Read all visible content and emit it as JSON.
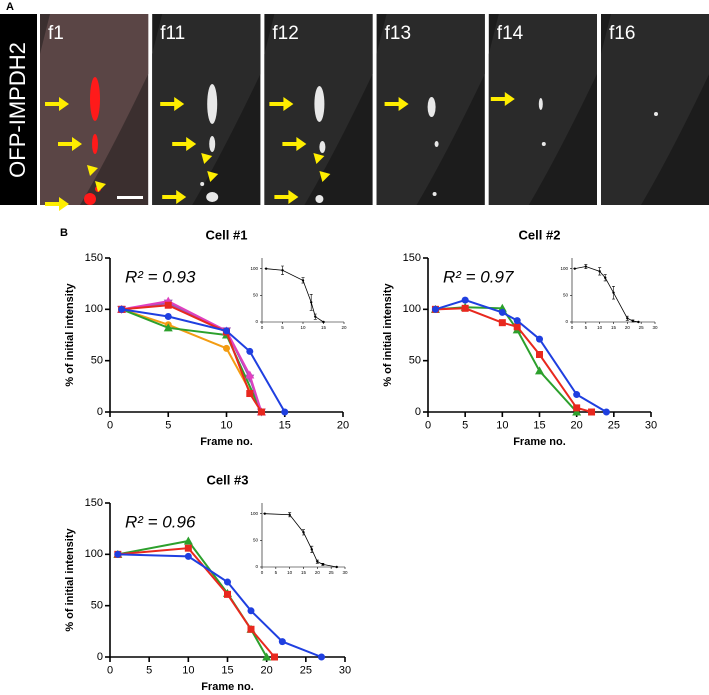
{
  "panel_a": {
    "label": "A",
    "row_label": "OFP-IMPDH2",
    "frames": [
      "f1",
      "f11",
      "f12",
      "f13",
      "f14",
      "f16"
    ]
  },
  "panel_b_label": "B",
  "chart_data": [
    {
      "type": "line",
      "title": "Cell #1",
      "xlabel": "Frame no.",
      "ylabel": "% of initial intensity",
      "annotation": "R² = 0.93",
      "xlim": [
        0,
        20
      ],
      "ylim": [
        0,
        150
      ],
      "xticks": [
        0,
        5,
        10,
        15,
        20
      ],
      "yticks": [
        0,
        50,
        100,
        150
      ],
      "series": [
        {
          "color": "#f39c12",
          "marker": "circle",
          "x": [
            1,
            5,
            10,
            13
          ],
          "values": [
            100,
            85,
            62,
            0
          ]
        },
        {
          "color": "#2ca02c",
          "marker": "triangle",
          "x": [
            1,
            5,
            10,
            13
          ],
          "values": [
            100,
            82,
            75,
            0
          ]
        },
        {
          "color": "#9b59b6",
          "marker": "triangle-down",
          "x": [
            1,
            5,
            10,
            12,
            13
          ],
          "values": [
            100,
            106,
            79,
            33,
            0
          ]
        },
        {
          "color": "#e040c0",
          "marker": "triangle",
          "x": [
            1,
            5,
            10,
            12,
            13
          ],
          "values": [
            100,
            108,
            79,
            36,
            0
          ]
        },
        {
          "color": "#e8281e",
          "marker": "square",
          "x": [
            1,
            5,
            10,
            12,
            13
          ],
          "values": [
            100,
            104,
            78,
            18,
            0
          ]
        },
        {
          "color": "#1f3fe0",
          "marker": "circle",
          "x": [
            1,
            5,
            10,
            12,
            15
          ],
          "values": [
            100,
            93,
            79,
            59,
            0
          ]
        }
      ],
      "inset": {
        "type": "line",
        "color": "#000000",
        "x": [
          1,
          5,
          10,
          12,
          13,
          15
        ],
        "values": [
          100,
          97,
          78,
          37,
          10,
          0
        ],
        "errors": [
          0,
          8,
          5,
          15,
          5,
          0
        ],
        "xlim": [
          0,
          20
        ],
        "ylim": [
          0,
          120
        ],
        "xticks": [
          0,
          5,
          10,
          15,
          20
        ],
        "yticks": [
          0,
          50,
          100
        ]
      }
    },
    {
      "type": "line",
      "title": "Cell #2",
      "xlabel": "Frame no.",
      "ylabel": "% of initial intensity",
      "annotation": "R² = 0.97",
      "xlim": [
        0,
        30
      ],
      "ylim": [
        0,
        150
      ],
      "xticks": [
        0,
        5,
        10,
        15,
        20,
        25,
        30
      ],
      "yticks": [
        0,
        50,
        100,
        150
      ],
      "series": [
        {
          "color": "#2ca02c",
          "marker": "triangle",
          "x": [
            1,
            5,
            10,
            12,
            15,
            20
          ],
          "values": [
            100,
            102,
            101,
            80,
            40,
            0
          ]
        },
        {
          "color": "#e8281e",
          "marker": "square",
          "x": [
            1,
            5,
            10,
            12,
            15,
            20,
            22
          ],
          "values": [
            100,
            101,
            87,
            83,
            56,
            4,
            0
          ]
        },
        {
          "color": "#1f3fe0",
          "marker": "circle",
          "x": [
            1,
            5,
            10,
            12,
            15,
            20,
            24
          ],
          "values": [
            100,
            109,
            97,
            89,
            71,
            17,
            0
          ]
        }
      ],
      "inset": {
        "type": "line",
        "color": "#000000",
        "x": [
          1,
          5,
          10,
          12,
          15,
          20,
          22,
          24
        ],
        "values": [
          100,
          104,
          95,
          83,
          55,
          7,
          2,
          0
        ],
        "errors": [
          0,
          4,
          7,
          6,
          12,
          4,
          2,
          0
        ],
        "xlim": [
          0,
          30
        ],
        "ylim": [
          0,
          120
        ],
        "xticks": [
          0,
          5,
          10,
          15,
          20,
          25,
          30
        ],
        "yticks": [
          0,
          50,
          100
        ]
      }
    },
    {
      "type": "line",
      "title": "Cell #3",
      "xlabel": "Frame no.",
      "ylabel": "% of initial intensity",
      "annotation": "R² = 0.96",
      "xlim": [
        0,
        30
      ],
      "ylim": [
        0,
        150
      ],
      "xticks": [
        0,
        5,
        10,
        15,
        20,
        25,
        30
      ],
      "yticks": [
        0,
        50,
        100,
        150
      ],
      "series": [
        {
          "color": "#2ca02c",
          "marker": "triangle",
          "x": [
            1,
            10,
            15,
            18,
            20
          ],
          "values": [
            100,
            113,
            62,
            27,
            0
          ]
        },
        {
          "color": "#e8281e",
          "marker": "square",
          "x": [
            1,
            10,
            15,
            18,
            21
          ],
          "values": [
            100,
            106,
            61,
            27,
            0
          ]
        },
        {
          "color": "#1f3fe0",
          "marker": "circle",
          "x": [
            1,
            10,
            15,
            18,
            22,
            27
          ],
          "values": [
            100,
            98,
            73,
            45,
            15,
            0
          ]
        }
      ],
      "inset": {
        "type": "line",
        "color": "#000000",
        "x": [
          1,
          10,
          15,
          18,
          20,
          22,
          27
        ],
        "values": [
          100,
          98,
          65,
          33,
          10,
          5,
          0
        ],
        "errors": [
          0,
          4,
          5,
          6,
          3,
          2,
          0
        ],
        "xlim": [
          0,
          30
        ],
        "ylim": [
          0,
          120
        ],
        "xticks": [
          0,
          5,
          10,
          15,
          20,
          25,
          30
        ],
        "yticks": [
          0,
          50,
          100
        ]
      }
    }
  ]
}
